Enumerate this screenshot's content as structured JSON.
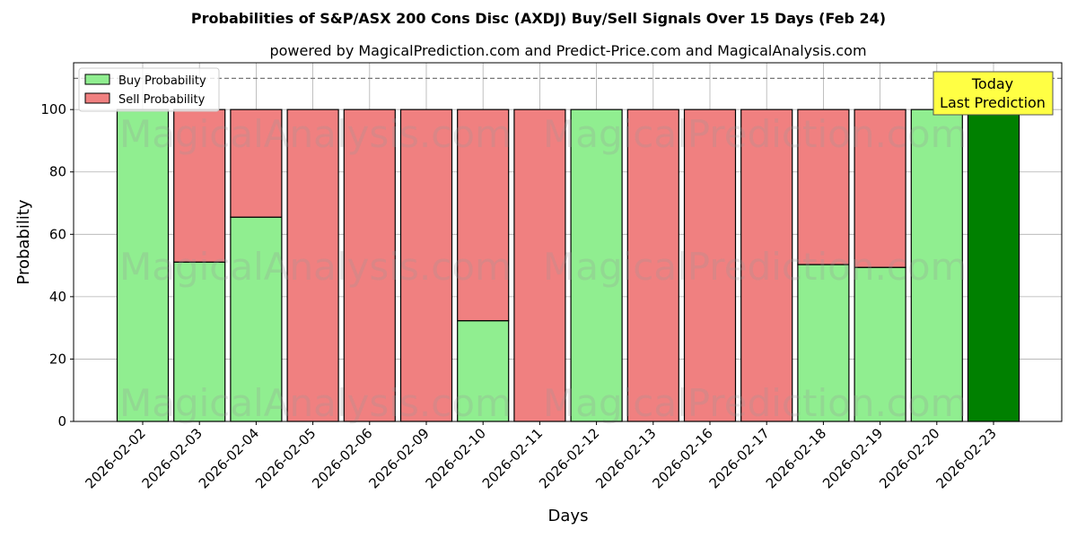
{
  "chart_data": {
    "type": "bar",
    "stacked": true,
    "title": "Probabilities of S&P/ASX 200 Cons Disc (AXDJ) Buy/Sell Signals Over 15 Days (Feb 24)",
    "subtitle": "powered by MagicalPrediction.com and Predict-Price.com and MagicalAnalysis.com",
    "xlabel": "Days",
    "ylabel": "Probability",
    "ylim": [
      0,
      115
    ],
    "yticks": [
      0,
      20,
      40,
      60,
      80,
      100
    ],
    "grid": true,
    "reference_line": 110,
    "categories": [
      "2026-02-02",
      "2026-02-03",
      "2026-02-04",
      "2026-02-05",
      "2026-02-06",
      "2026-02-09",
      "2026-02-10",
      "2026-02-11",
      "2026-02-12",
      "2026-02-13",
      "2026-02-16",
      "2026-02-17",
      "2026-02-18",
      "2026-02-19",
      "2026-02-20",
      "2026-02-23"
    ],
    "series": [
      {
        "name": "Buy Probability",
        "color": "#90ee90",
        "values": [
          100,
          51.1,
          65.5,
          0,
          0,
          0,
          32.3,
          0,
          100,
          0,
          0,
          0,
          50.3,
          49.4,
          100,
          100
        ]
      },
      {
        "name": "Sell Probability",
        "color": "#f08080",
        "values": [
          0,
          48.9,
          34.5,
          100,
          100,
          100,
          67.7,
          100,
          0,
          100,
          100,
          100,
          49.7,
          50.6,
          0,
          0
        ]
      }
    ],
    "highlight": {
      "index": 15,
      "color": "#008000"
    },
    "legend": "top-left",
    "annotation": {
      "line1": "Today",
      "line2": "Last Prediction",
      "color": "#ffff44"
    },
    "watermarks": [
      "MagicalAnalysis.com",
      "MagicalPrediction.com"
    ]
  }
}
